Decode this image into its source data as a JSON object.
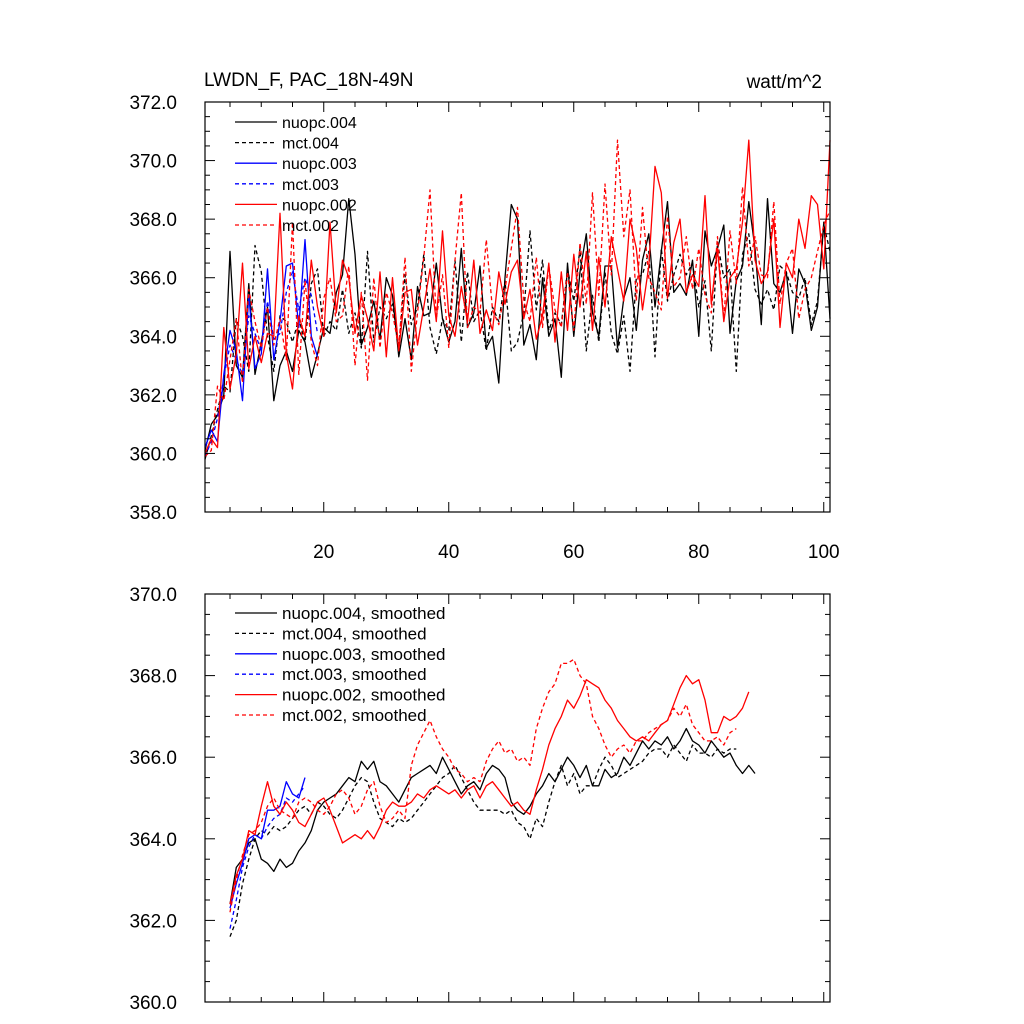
{
  "chart_data": [
    {
      "type": "line",
      "title": "LWDN_F, PAC_18N-49N",
      "units": "watt/m^2",
      "xlabel": "",
      "ylabel": "",
      "xlim": [
        1,
        101
      ],
      "ylim": [
        358,
        372
      ],
      "xticks": [
        20,
        40,
        60,
        80,
        100
      ],
      "xtick_labels": [
        "20",
        "40",
        "60",
        "80",
        "100"
      ],
      "yticks": [
        358,
        360,
        362,
        364,
        366,
        368,
        370,
        372
      ],
      "ytick_labels": [
        "358.0",
        "360.0",
        "362.0",
        "364.0",
        "366.0",
        "368.0",
        "370.0",
        "372.0"
      ],
      "legend_position": "top-left",
      "series": [
        {
          "name": "nuopc.004",
          "color": "#000000",
          "dash": "solid",
          "x_start": 1,
          "values": [
            360.1,
            361.0,
            361.3,
            362.0,
            366.9,
            363.0,
            362.6,
            365.8,
            362.7,
            363.8,
            365.0,
            361.8,
            363.0,
            363.5,
            362.8,
            364.2,
            363.8,
            362.6,
            363.4,
            364.3,
            364.1,
            365.5,
            366.1,
            368.7,
            366.8,
            363.7,
            364.3,
            365.2,
            363.9,
            366.0,
            365.4,
            363.3,
            364.6,
            363.2,
            365.7,
            364.7,
            364.8,
            366.5,
            364.6,
            363.8,
            364.5,
            367.0,
            364.3,
            364.8,
            366.4,
            363.6,
            364.0,
            362.4,
            366.0,
            368.5,
            368.0,
            363.7,
            364.4,
            363.2,
            366.0,
            364.0,
            364.6,
            362.6,
            366.5,
            364.0,
            366.2,
            367.5,
            364.8,
            364.0,
            366.4,
            366.4,
            363.6,
            365.3,
            366.0,
            364.2,
            366.6,
            367.5,
            365.0,
            366.9,
            368.6,
            365.5,
            365.8,
            365.4,
            366.6,
            364.0,
            367.6,
            366.4,
            367.0,
            367.8,
            364.1,
            365.9,
            366.4,
            368.6,
            367.0,
            364.4,
            368.7,
            365.8,
            365.5,
            366.2,
            364.1,
            366.3,
            365.8,
            364.2,
            365.0,
            367.9,
            364.6
          ]
        },
        {
          "name": "mct.004",
          "color": "#000000",
          "dash": "4,3",
          "x_start": 1,
          "values": [
            359.8,
            360.6,
            361.5,
            362.3,
            362.1,
            364.6,
            364.0,
            362.8,
            367.1,
            366.2,
            364.0,
            362.8,
            364.7,
            364.5,
            363.8,
            364.6,
            363.8,
            365.8,
            366.3,
            364.0,
            364.5,
            364.2,
            365.6,
            364.1,
            364.8,
            363.6,
            366.9,
            363.8,
            365.0,
            364.6,
            365.1,
            363.6,
            366.1,
            364.4,
            365.0,
            366.8,
            364.3,
            363.4,
            364.6,
            364.2,
            366.6,
            363.8,
            366.2,
            364.5,
            364.9,
            363.5,
            365.0,
            364.5,
            365.9,
            363.5,
            363.8,
            364.8,
            367.6,
            364.9,
            366.6,
            364.2,
            364.8,
            364.4,
            366.3,
            365.2,
            367.0,
            363.5,
            365.4,
            363.8,
            366.2,
            364.1,
            363.4,
            364.7,
            362.8,
            366.0,
            366.1,
            366.9,
            363.3,
            367.0,
            365.2,
            366.1,
            366.8,
            366.1,
            366.5,
            365.0,
            365.9,
            363.5,
            367.2,
            366.0,
            366.3,
            362.8,
            366.8,
            367.5,
            365.6,
            365.1,
            365.6,
            364.9,
            366.4,
            366.2,
            365.5,
            365.3,
            366.0,
            364.4,
            365.2,
            367.8,
            366.9
          ]
        },
        {
          "name": "nuopc.003",
          "color": "#0000ff",
          "dash": "solid",
          "x_start": 1,
          "values": [
            360.2,
            360.8,
            360.4,
            362.7,
            364.2,
            363.5,
            361.8,
            365.4,
            362.9,
            363.4,
            366.3,
            363.2,
            364.5,
            366.4,
            366.5,
            364.3,
            367.3,
            364.0,
            363.3
          ]
        },
        {
          "name": "mct.003",
          "color": "#0000ff",
          "dash": "4,3",
          "x_start": 1,
          "values": [
            359.9,
            360.4,
            361.2,
            362.6,
            363.7,
            363.2,
            362.7,
            364.7,
            364.1,
            363.5,
            365.2,
            363.9,
            364.1,
            365.5,
            366.2,
            364.9,
            366.0,
            365.4,
            364.1
          ]
        },
        {
          "name": "nuopc.002",
          "color": "#ff0000",
          "dash": "solid",
          "x_start": 1,
          "values": [
            360.0,
            360.5,
            360.2,
            364.3,
            362.2,
            363.4,
            366.5,
            362.9,
            364.0,
            363.1,
            364.1,
            364.0,
            368.2,
            363.4,
            362.2,
            364.7,
            364.0,
            366.6,
            365.0,
            364.0,
            367.9,
            364.8,
            366.6,
            366.0,
            364.1,
            365.4,
            364.6,
            363.5,
            366.2,
            363.3,
            366.0,
            363.5,
            365.5,
            365.6,
            363.7,
            365.0,
            366.3,
            364.5,
            367.6,
            364.7,
            364.0,
            365.7,
            364.5,
            366.6,
            364.1,
            364.9,
            364.2,
            366.2,
            365.1,
            366.2,
            366.6,
            364.6,
            365.6,
            363.9,
            364.7,
            366.5,
            363.8,
            366.2,
            364.2,
            366.8,
            365.0,
            366.9,
            364.2,
            366.7,
            365.0,
            367.4,
            366.3,
            365.2,
            368.0,
            367.0,
            364.9,
            366.4,
            369.8,
            368.9,
            365.3,
            367.2,
            368.0,
            365.5,
            366.1,
            365.7,
            368.8,
            365.1,
            367.0,
            364.5,
            366.0,
            366.3,
            367.9,
            370.7,
            366.6,
            365.8,
            366.2,
            368.0,
            364.3,
            366.5,
            366.0,
            368.0,
            367.0,
            368.8,
            368.5,
            366.3,
            370.7
          ]
        },
        {
          "name": "mct.002",
          "color": "#ff0000",
          "dash": "4,3",
          "x_start": 1,
          "values": [
            359.9,
            360.1,
            362.3,
            361.8,
            363.2,
            364.6,
            362.4,
            365.6,
            364.5,
            363.6,
            365.0,
            363.7,
            364.6,
            363.2,
            367.9,
            362.7,
            365.9,
            363.8,
            363.0,
            365.3,
            366.0,
            364.5,
            364.7,
            366.4,
            363.0,
            365.5,
            362.5,
            366.0,
            363.6,
            365.5,
            364.8,
            363.6,
            366.7,
            362.8,
            364.8,
            366.7,
            369.0,
            364.6,
            366.1,
            363.6,
            366.6,
            368.9,
            364.3,
            365.0,
            364.8,
            367.3,
            364.9,
            364.4,
            365.6,
            367.0,
            368.4,
            365.2,
            364.5,
            366.7,
            364.3,
            366.4,
            364.9,
            364.3,
            366.2,
            364.2,
            367.2,
            365.1,
            368.9,
            365.4,
            369.2,
            366.1,
            370.7,
            367.4,
            369.0,
            365.2,
            368.4,
            366.0,
            365.5,
            364.9,
            368.1,
            365.7,
            366.0,
            367.4,
            365.6,
            367.0,
            365.4,
            364.8,
            367.4,
            364.6,
            367.6,
            365.8,
            369.1,
            366.4,
            367.4,
            366.1,
            366.0,
            368.6,
            365.1,
            366.5,
            367.0,
            364.6,
            365.6,
            366.0,
            366.9,
            367.8,
            368.3
          ]
        }
      ]
    },
    {
      "type": "line",
      "title": "",
      "xlabel": "",
      "ylabel": "",
      "xlim": [
        1,
        101
      ],
      "ylim": [
        360,
        370
      ],
      "xticks": [
        20,
        40,
        60,
        80,
        100
      ],
      "yticks": [
        360,
        362,
        364,
        366,
        368,
        370
      ],
      "ytick_labels": [
        "360.0",
        "362.0",
        "364.0",
        "366.0",
        "368.0",
        "370.0"
      ],
      "legend_position": "top-left",
      "series": [
        {
          "name": "nuopc.004, smoothed",
          "color": "#000000",
          "dash": "solid",
          "x_start": 5,
          "values": [
            362.4,
            363.3,
            363.5,
            363.9,
            364.0,
            363.5,
            363.4,
            363.2,
            363.5,
            363.3,
            363.4,
            363.7,
            363.9,
            364.2,
            364.7,
            364.9,
            365.0,
            365.1,
            365.3,
            365.5,
            365.4,
            365.9,
            365.7,
            365.9,
            365.4,
            365.3,
            365.1,
            364.9,
            365.2,
            365.5,
            365.6,
            365.7,
            365.8,
            365.6,
            366.0,
            365.7,
            365.4,
            365.1,
            365.3,
            365.4,
            365.2,
            365.6,
            365.8,
            365.7,
            365.5,
            364.9,
            364.7,
            364.6,
            364.8,
            365.1,
            365.3,
            365.6,
            365.4,
            365.7,
            366.0,
            365.8,
            365.5,
            365.8,
            365.3,
            365.3,
            365.7,
            365.5,
            365.6,
            366.0,
            365.8,
            366.1,
            366.4,
            366.2,
            366.4,
            366.3,
            366.5,
            366.2,
            366.4,
            366.7,
            366.4,
            366.3,
            366.1,
            366.4,
            366.2,
            366.0,
            366.1,
            365.8,
            365.6,
            365.8,
            365.6
          ]
        },
        {
          "name": "mct.004, smoothed",
          "color": "#000000",
          "dash": "4,3",
          "x_start": 5,
          "values": [
            361.6,
            362.0,
            362.9,
            363.5,
            364.0,
            364.2,
            364.1,
            364.3,
            364.2,
            364.3,
            364.5,
            364.7,
            364.8,
            364.6,
            364.9,
            364.8,
            364.6,
            364.5,
            364.7,
            365.0,
            365.3,
            365.5,
            365.4,
            364.9,
            364.5,
            364.4,
            364.3,
            364.5,
            364.4,
            364.5,
            364.7,
            364.9,
            365.1,
            365.3,
            365.5,
            365.6,
            365.8,
            365.5,
            365.2,
            364.9,
            364.7,
            364.7,
            364.7,
            364.7,
            364.6,
            364.7,
            364.4,
            364.3,
            364.0,
            364.5,
            364.3,
            364.9,
            365.4,
            365.8,
            365.3,
            365.6,
            365.1,
            365.3,
            365.3,
            365.7,
            366.0,
            365.8,
            365.5,
            365.6,
            365.7,
            365.8,
            365.9,
            366.1,
            366.2,
            366.2,
            366.0,
            366.3,
            366.1,
            365.9,
            366.3,
            366.1,
            366.1,
            366.0,
            366.2,
            366.1,
            366.2,
            366.2
          ]
        },
        {
          "name": "nuopc.003, smoothed",
          "color": "#0000ff",
          "dash": "solid",
          "x_start": 5,
          "values": [
            362.3,
            362.9,
            363.4,
            364.0,
            364.1,
            364.0,
            364.7,
            364.7,
            364.8,
            365.4,
            365.1,
            365.0,
            365.5
          ]
        },
        {
          "name": "mct.003, smoothed",
          "color": "#0000ff",
          "dash": "4,3",
          "x_start": 5,
          "values": [
            361.8,
            362.5,
            363.3,
            363.8,
            364.1,
            364.0,
            364.3,
            364.5,
            364.6,
            365.0,
            364.9,
            365.1,
            365.3
          ]
        },
        {
          "name": "nuopc.002, smoothed",
          "color": "#ff0000",
          "dash": "solid",
          "x_start": 5,
          "values": [
            362.4,
            363.1,
            363.5,
            364.2,
            364.1,
            364.8,
            365.4,
            364.8,
            364.6,
            364.9,
            364.7,
            364.4,
            364.3,
            364.6,
            364.9,
            365.0,
            364.7,
            364.3,
            363.9,
            364.0,
            364.1,
            364.0,
            364.2,
            364.0,
            364.3,
            364.7,
            364.9,
            364.8,
            364.8,
            364.9,
            365.1,
            365.0,
            365.2,
            365.3,
            365.2,
            365.1,
            365.2,
            365.0,
            365.2,
            365.3,
            365.0,
            365.3,
            365.4,
            365.2,
            365.0,
            364.8,
            364.9,
            364.7,
            364.6,
            365.2,
            365.7,
            366.3,
            366.7,
            367.0,
            367.4,
            367.2,
            367.5,
            367.9,
            367.8,
            367.7,
            367.4,
            367.2,
            366.9,
            366.7,
            366.5,
            366.4,
            366.5,
            366.4,
            366.6,
            366.8,
            366.9,
            367.3,
            367.7,
            368.0,
            367.8,
            367.9,
            367.4,
            366.6,
            366.6,
            367.0,
            366.9,
            367.0,
            367.2,
            367.6
          ]
        },
        {
          "name": "mct.002, smoothed",
          "color": "#ff0000",
          "dash": "4,3",
          "x_start": 5,
          "values": [
            362.2,
            363.0,
            363.6,
            364.1,
            364.2,
            364.4,
            364.8,
            365.0,
            364.7,
            364.6,
            364.5,
            364.9,
            365.0,
            364.9,
            364.7,
            364.6,
            364.8,
            365.1,
            365.2,
            365.0,
            364.6,
            364.8,
            365.2,
            365.4,
            364.8,
            364.4,
            364.5,
            364.7,
            364.5,
            365.8,
            366.3,
            366.6,
            366.9,
            366.5,
            366.2,
            366.0,
            365.7,
            365.6,
            365.4,
            365.5,
            365.4,
            365.9,
            366.2,
            366.4,
            366.1,
            366.2,
            365.9,
            366.0,
            365.8,
            366.7,
            367.2,
            367.6,
            367.8,
            368.3,
            368.3,
            368.4,
            368.0,
            367.8,
            367.0,
            366.7,
            366.3,
            366.0,
            366.2,
            366.3,
            366.1,
            366.4,
            366.4,
            366.6,
            366.7,
            366.8,
            366.9,
            367.2,
            367.0,
            367.3,
            366.8,
            366.6,
            366.4,
            366.4,
            366.5,
            366.3,
            366.6,
            366.7
          ]
        }
      ]
    }
  ]
}
